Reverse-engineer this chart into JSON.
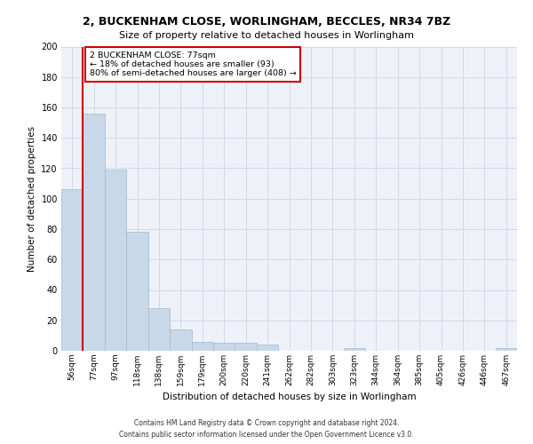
{
  "title_line1": "2, BUCKENHAM CLOSE, WORLINGHAM, BECCLES, NR34 7BZ",
  "title_line2": "Size of property relative to detached houses in Worlingham",
  "xlabel": "Distribution of detached houses by size in Worlingham",
  "ylabel": "Number of detached properties",
  "categories": [
    "56sqm",
    "77sqm",
    "97sqm",
    "118sqm",
    "138sqm",
    "159sqm",
    "179sqm",
    "200sqm",
    "220sqm",
    "241sqm",
    "262sqm",
    "282sqm",
    "303sqm",
    "323sqm",
    "344sqm",
    "364sqm",
    "385sqm",
    "405sqm",
    "426sqm",
    "446sqm",
    "467sqm"
  ],
  "values": [
    106,
    156,
    119,
    78,
    28,
    14,
    6,
    5,
    5,
    4,
    0,
    0,
    0,
    2,
    0,
    0,
    0,
    0,
    0,
    0,
    2
  ],
  "bar_color": "#c8d8e8",
  "bar_edge_color": "#a0b8d0",
  "grid_color": "#d0d8e8",
  "background_color": "#eef2f8",
  "vline_x_index": 1,
  "vline_color": "#cc0000",
  "annotation_text": "2 BUCKENHAM CLOSE: 77sqm\n← 18% of detached houses are smaller (93)\n80% of semi-detached houses are larger (408) →",
  "annotation_box_color": "#cc0000",
  "ylim": [
    0,
    200
  ],
  "yticks": [
    0,
    20,
    40,
    60,
    80,
    100,
    120,
    140,
    160,
    180,
    200
  ],
  "footer_line1": "Contains HM Land Registry data © Crown copyright and database right 2024.",
  "footer_line2": "Contains public sector information licensed under the Open Government Licence v3.0."
}
